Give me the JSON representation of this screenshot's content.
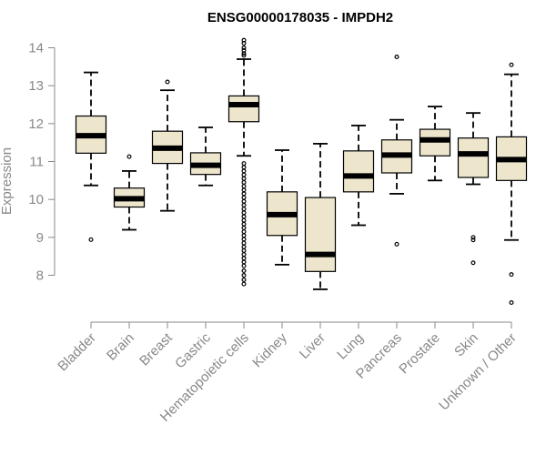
{
  "chart_data": {
    "type": "box",
    "title": "ENSG00000178035 - IMPDH2",
    "xlabel": "",
    "ylabel": "Expression",
    "ylim": [
      7.1,
      14.3
    ],
    "yticks": [
      8,
      9,
      10,
      11,
      12,
      13,
      14
    ],
    "categories": [
      "Bladder",
      "Brain",
      "Breast",
      "Gastric",
      "Hematopoietic cells",
      "Kidney",
      "Liver",
      "Lung",
      "Pancreas",
      "Prostate",
      "Skin",
      "Unknown / Other"
    ],
    "boxes": [
      {
        "category": "Bladder",
        "whisker_low": 10.37,
        "q1": 11.22,
        "median": 11.68,
        "q3": 12.2,
        "whisker_high": 13.35,
        "outliers": [
          8.94
        ]
      },
      {
        "category": "Brain",
        "whisker_low": 9.2,
        "q1": 9.8,
        "median": 10.02,
        "q3": 10.3,
        "whisker_high": 10.75,
        "outliers": [
          11.13
        ]
      },
      {
        "category": "Breast",
        "whisker_low": 9.7,
        "q1": 10.95,
        "median": 11.35,
        "q3": 11.8,
        "whisker_high": 12.88,
        "outliers": [
          13.1
        ]
      },
      {
        "category": "Gastric",
        "whisker_low": 10.37,
        "q1": 10.66,
        "median": 10.9,
        "q3": 11.23,
        "whisker_high": 11.9,
        "outliers": []
      },
      {
        "category": "Hematopoietic cells",
        "whisker_low": 11.15,
        "q1": 12.05,
        "median": 12.5,
        "q3": 12.73,
        "whisker_high": 13.7,
        "outliers": [
          14.2,
          14.12,
          14.0,
          13.93,
          13.85,
          13.8,
          10.95,
          10.85,
          10.75,
          10.65,
          10.55,
          10.45,
          10.35,
          10.25,
          10.15,
          10.05,
          9.95,
          9.85,
          9.75,
          9.65,
          9.55,
          9.45,
          9.35,
          9.25,
          9.15,
          9.05,
          8.95,
          8.85,
          8.75,
          8.65,
          8.55,
          8.45,
          8.35,
          8.25,
          8.12,
          8.0,
          7.88,
          7.77
        ]
      },
      {
        "category": "Kidney",
        "whisker_low": 8.28,
        "q1": 9.05,
        "median": 9.6,
        "q3": 10.2,
        "whisker_high": 11.3,
        "outliers": []
      },
      {
        "category": "Liver",
        "whisker_low": 7.63,
        "q1": 8.1,
        "median": 8.55,
        "q3": 10.05,
        "whisker_high": 11.47,
        "outliers": []
      },
      {
        "category": "Lung",
        "whisker_low": 9.32,
        "q1": 10.2,
        "median": 10.62,
        "q3": 11.28,
        "whisker_high": 11.95,
        "outliers": []
      },
      {
        "category": "Pancreas",
        "whisker_low": 10.15,
        "q1": 10.7,
        "median": 11.17,
        "q3": 11.57,
        "whisker_high": 12.1,
        "outliers": [
          13.76,
          8.82
        ]
      },
      {
        "category": "Prostate",
        "whisker_low": 10.5,
        "q1": 11.15,
        "median": 11.57,
        "q3": 11.85,
        "whisker_high": 12.45,
        "outliers": []
      },
      {
        "category": "Skin",
        "whisker_low": 10.4,
        "q1": 10.58,
        "median": 11.2,
        "q3": 11.62,
        "whisker_high": 12.28,
        "outliers": [
          9.0,
          8.93,
          8.33
        ]
      },
      {
        "category": "Unknown / Other",
        "whisker_low": 8.93,
        "q1": 10.5,
        "median": 11.05,
        "q3": 11.65,
        "whisker_high": 13.3,
        "outliers": [
          13.55,
          8.02,
          7.28
        ]
      }
    ],
    "box_fill": "#ede6cd",
    "box_stroke": "#000000",
    "grid": false,
    "legend": "none"
  }
}
